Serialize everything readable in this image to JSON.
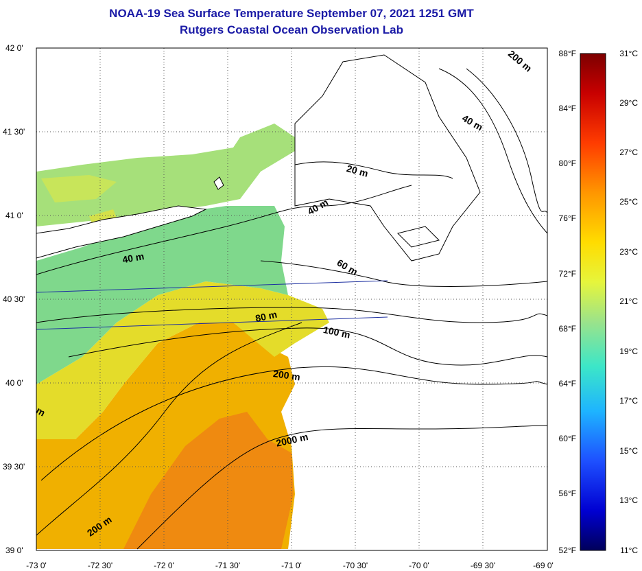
{
  "header": {
    "title": "NOAA-19 Sea Surface Temperature September 07, 2021 1251 GMT",
    "subtitle": "Rutgers Coastal Ocean Observation Lab"
  },
  "map": {
    "lat_labels": [
      "42 0'",
      "41 30'",
      "41 0'",
      "40 30'",
      "40 0'",
      "39 30'",
      "39 0'"
    ],
    "lon_labels": [
      "-73 0'",
      "-72 30'",
      "-72 0'",
      "-71 30'",
      "-71 0'",
      "-70 30'",
      "-70 0'",
      "-69 30'",
      "-69 0'"
    ],
    "contour_labels": [
      "200 m",
      "40 m",
      "20 m",
      "40 m",
      "40 m",
      "60 m",
      "80 m",
      "100 m",
      "200 m",
      "2000 m",
      "200 m",
      "m"
    ],
    "colors": {
      "land": "#ffffff",
      "gridline": "#555555",
      "contour": "#000000",
      "transect": "#1c2fa0"
    }
  },
  "legend": {
    "fahrenheit": [
      "88°F",
      "84°F",
      "80°F",
      "76°F",
      "72°F",
      "68°F",
      "64°F",
      "60°F",
      "56°F",
      "52°F"
    ],
    "celsius": [
      "31°C",
      "29°C",
      "27°C",
      "25°C",
      "23°C",
      "21°C",
      "19°C",
      "17°C",
      "15°C",
      "13°C",
      "11°C"
    ],
    "gradient_colors": [
      "#7d0000",
      "#e60000",
      "#ff7800",
      "#ffd200",
      "#e8f53c",
      "#9be38a",
      "#3ee6c8",
      "#1fb4ff",
      "#1f5aff",
      "#0000c8",
      "#000064"
    ]
  }
}
